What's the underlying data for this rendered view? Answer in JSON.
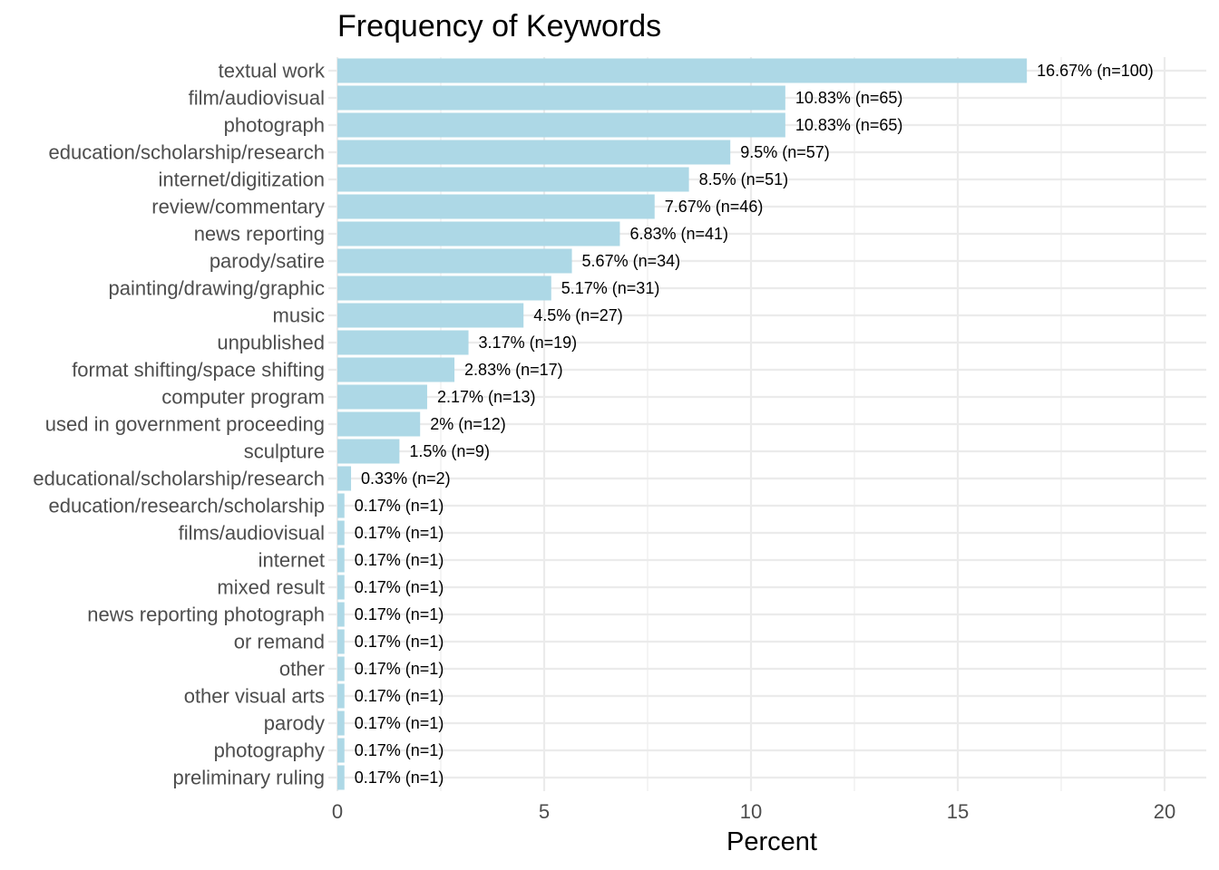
{
  "chart_data": {
    "type": "bar",
    "orientation": "horizontal",
    "title": "Frequency of Keywords",
    "xlabel": "Percent",
    "ylabel": "",
    "xlim": [
      0,
      20
    ],
    "xticks": [
      0,
      5,
      10,
      15,
      20
    ],
    "grid": true,
    "bar_color": "#add8e6",
    "categories": [
      "textual work",
      "film/audiovisual",
      "photograph",
      "education/scholarship/research",
      "internet/digitization",
      "review/commentary",
      "news reporting",
      "parody/satire",
      "painting/drawing/graphic",
      "music",
      "unpublished",
      "format shifting/space shifting",
      "computer program",
      "used in government proceeding",
      "sculpture",
      "educational/scholarship/research",
      "education/research/scholarship",
      "films/audiovisual",
      "internet",
      "mixed result",
      "news reporting photograph",
      "or remand",
      "other",
      "other visual arts",
      "parody",
      "photography",
      "preliminary ruling"
    ],
    "values": [
      16.67,
      10.83,
      10.83,
      9.5,
      8.5,
      7.67,
      6.83,
      5.67,
      5.17,
      4.5,
      3.17,
      2.83,
      2.17,
      2,
      1.5,
      0.33,
      0.17,
      0.17,
      0.17,
      0.17,
      0.17,
      0.17,
      0.17,
      0.17,
      0.17,
      0.17,
      0.17
    ],
    "labels": [
      "16.67% (n=100)",
      "10.83% (n=65)",
      "10.83% (n=65)",
      "9.5% (n=57)",
      "8.5% (n=51)",
      "7.67% (n=46)",
      "6.83% (n=41)",
      "5.67% (n=34)",
      "5.17% (n=31)",
      "4.5% (n=27)",
      "3.17% (n=19)",
      "2.83% (n=17)",
      "2.17% (n=13)",
      "2% (n=12)",
      "1.5% (n=9)",
      "0.33% (n=2)",
      "0.17% (n=1)",
      "0.17% (n=1)",
      "0.17% (n=1)",
      "0.17% (n=1)",
      "0.17% (n=1)",
      "0.17% (n=1)",
      "0.17% (n=1)",
      "0.17% (n=1)",
      "0.17% (n=1)",
      "0.17% (n=1)",
      "0.17% (n=1)"
    ]
  }
}
